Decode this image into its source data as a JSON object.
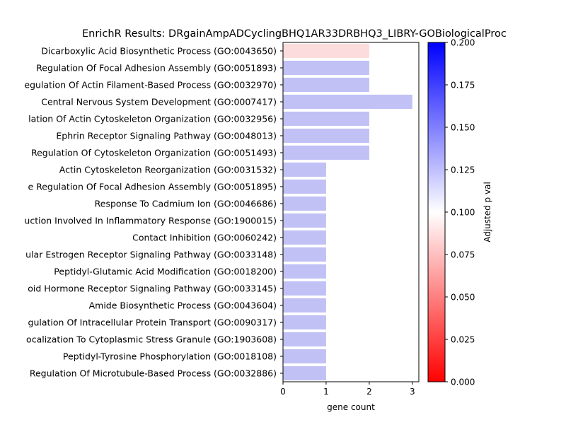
{
  "chart_data": {
    "type": "bar",
    "orientation": "horizontal",
    "title": "EnrichR Results: DRgainAmpADCyclingBHQ1AR33DRBHQ3_LIBRY-GOBiologicalProc",
    "xlabel": "gene count",
    "ylabel": "",
    "xlim": [
      0,
      3.15
    ],
    "xticks": [
      0,
      1,
      2,
      3
    ],
    "categories": [
      "Dicarboxylic Acid Biosynthetic Process (GO:0043650)",
      "Regulation Of Focal Adhesion Assembly (GO:0051893)",
      "egulation Of Actin Filament-Based Process (GO:0032970)",
      "Central Nervous System Development (GO:0007417)",
      "lation Of Actin Cytoskeleton Organization (GO:0032956)",
      "Ephrin Receptor Signaling Pathway (GO:0048013)",
      "Regulation Of Cytoskeleton Organization (GO:0051493)",
      "Actin Cytoskeleton Reorganization (GO:0031532)",
      "e Regulation Of Focal Adhesion Assembly (GO:0051895)",
      "Response To Cadmium Ion (GO:0046686)",
      "uction Involved In Inflammatory Response (GO:1900015)",
      "Contact Inhibition (GO:0060242)",
      "ular Estrogen Receptor Signaling Pathway (GO:0033148)",
      "Peptidyl-Glutamic Acid Modification (GO:0018200)",
      "oid Hormone Receptor Signaling Pathway (GO:0033145)",
      "Amide Biosynthetic Process (GO:0043604)",
      "gulation Of Intracellular Protein Transport (GO:0090317)",
      "ocalization To Cytoplasmic Stress Granule (GO:1903608)",
      "Peptidyl-Tyrosine Phosphorylation (GO:0018108)",
      "Regulation Of Microtubule-Based Process (GO:0032886)"
    ],
    "values": [
      2,
      2,
      2,
      3,
      2,
      2,
      2,
      1,
      1,
      1,
      1,
      1,
      1,
      1,
      1,
      1,
      1,
      1,
      1,
      1
    ],
    "bar_colors": [
      "#fcdcdc",
      "#c1c1f6",
      "#c1c1f6",
      "#c1c1f6",
      "#c1c1f6",
      "#c1c1f6",
      "#c1c1f6",
      "#c1c1f6",
      "#c1c1f6",
      "#c1c1f6",
      "#c1c1f6",
      "#c1c1f6",
      "#c1c1f6",
      "#c1c1f6",
      "#c1c1f6",
      "#c1c1f6",
      "#c1c1f6",
      "#c1c1f6",
      "#c1c1f6",
      "#c1c1f6"
    ],
    "colorbar": {
      "label": "Adjusted p val",
      "range": [
        0,
        0.2
      ],
      "ticks": [
        "0.000",
        "0.025",
        "0.050",
        "0.075",
        "0.100",
        "0.125",
        "0.150",
        "0.175",
        "0.200"
      ],
      "colormap": [
        "#ff0000",
        "#ffffff",
        "#0000ff"
      ]
    },
    "grid": false,
    "legend": "none"
  }
}
